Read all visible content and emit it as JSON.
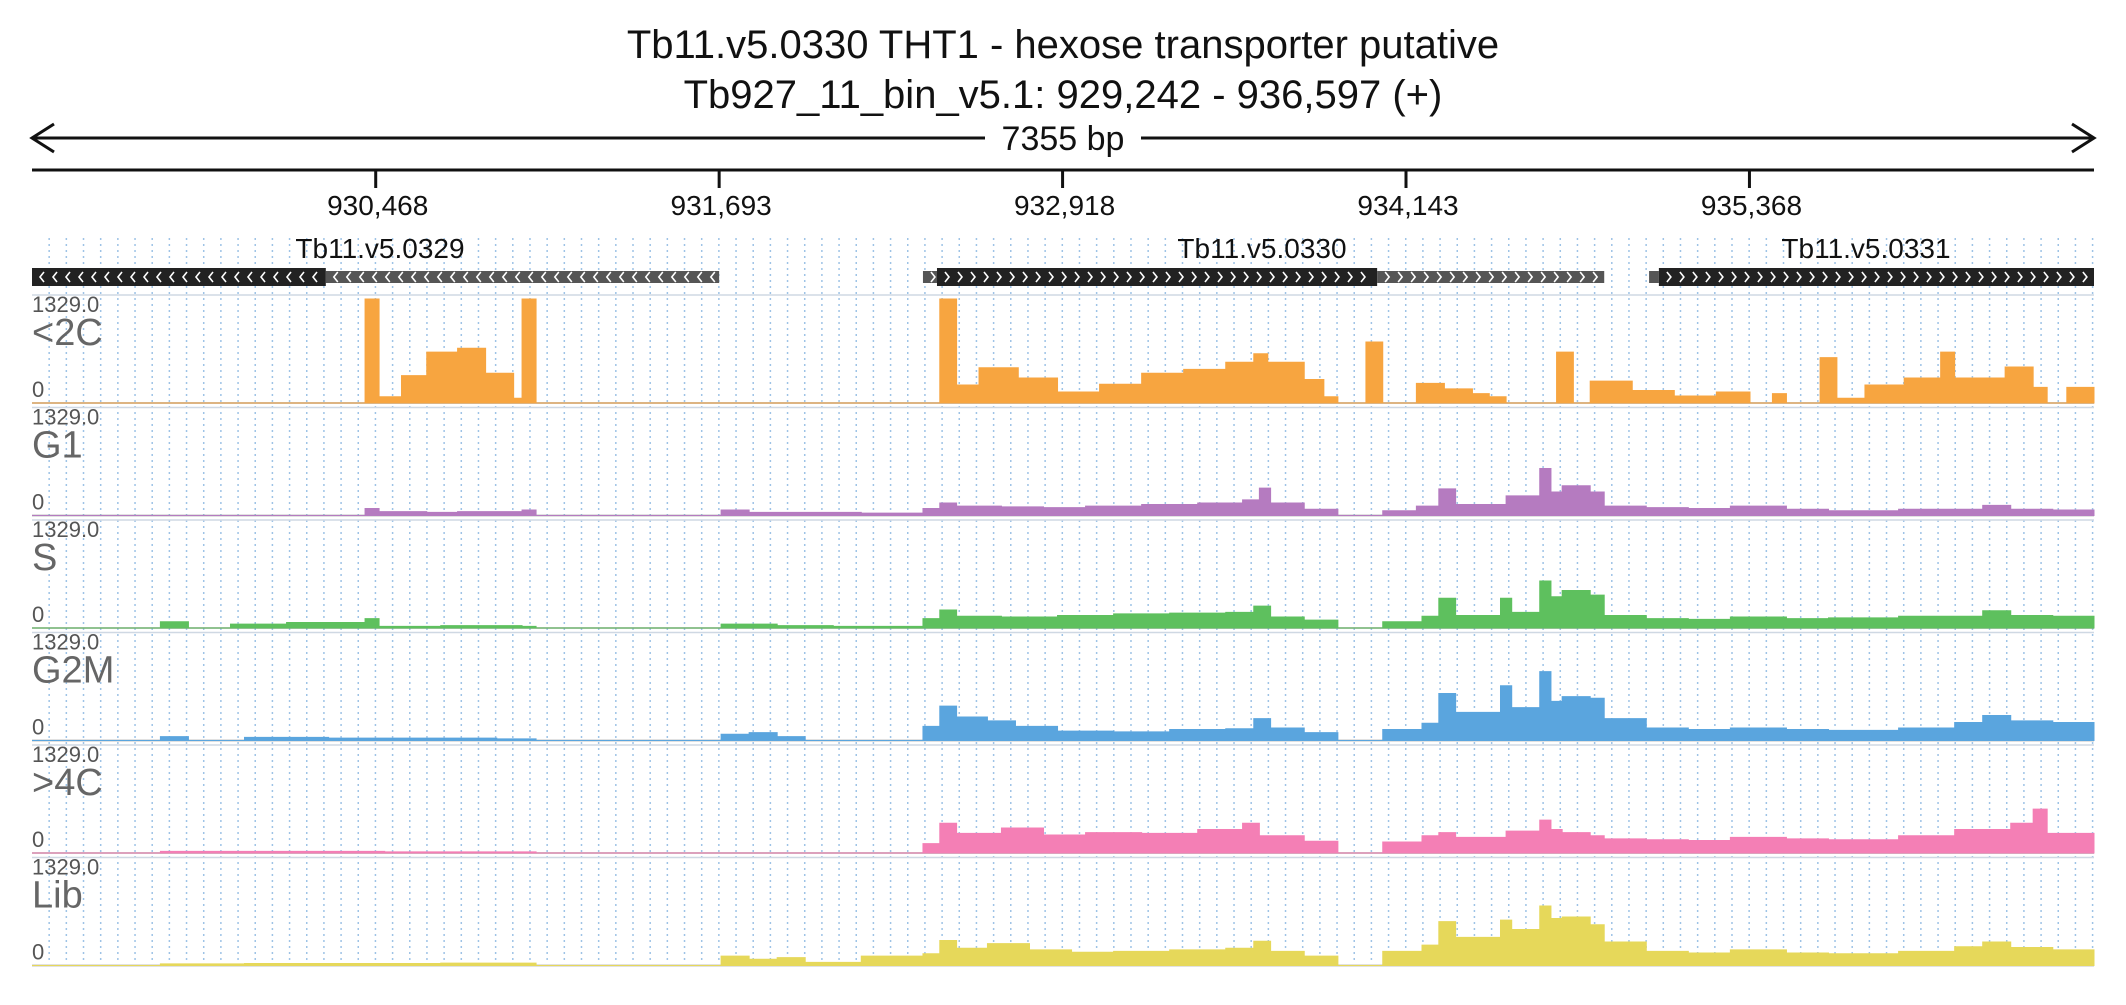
{
  "header": {
    "title": "Tb11.v5.0330  THT1 - hexose transporter  putative",
    "subtitle": "Tb927_11_bin_v5.1: 929,242 - 936,597 (+)",
    "span_label": "7355 bp"
  },
  "chart_data": {
    "type": "area",
    "x_range": [
      929242,
      936597
    ],
    "ticks": [
      930468,
      931693,
      932918,
      934143,
      935368
    ],
    "tick_labels": [
      "930,468",
      "931,693",
      "932,918",
      "934,143",
      "935,368"
    ],
    "genes": [
      {
        "name": "Tb11.v5.0329",
        "strand": "-",
        "cds": [
          929242,
          930290
        ],
        "utr": [
          930290,
          931693
        ]
      },
      {
        "name": "Tb11.v5.0330",
        "strand": "+",
        "utr": [
          932420,
          932470
        ],
        "cds": [
          932470,
          934040
        ],
        "utr3": [
          934040,
          934850
        ]
      },
      {
        "name": "Tb11.v5.0331",
        "strand": "+",
        "utr": [
          935010,
          935045
        ],
        "cds": [
          935045,
          936597
        ]
      }
    ],
    "tracks": [
      {
        "name": "<2C",
        "color": "#f7a540",
        "ymax_label": "1329.0",
        "ymin_label": "0"
      },
      {
        "name": "G1",
        "color": "#b57bc0",
        "ymax_label": "1329.0",
        "ymin_label": "0"
      },
      {
        "name": "S",
        "color": "#5ec05e",
        "ymax_label": "1329.0",
        "ymin_label": "0"
      },
      {
        "name": "G2M",
        "color": "#5aa5de",
        "ymax_label": "1329.0",
        "ymin_label": "0"
      },
      {
        "name": ">4C",
        "color": "#f47fb5",
        "ymax_label": "1329.0",
        "ymin_label": "0"
      },
      {
        "name": "Lib",
        "color": "#e6d85a",
        "ymax_label": "1329.0",
        "ymin_label": "0"
      }
    ],
    "coverage": {
      "<2C": [
        [
          930430,
          1329
        ],
        [
          930480,
          80
        ],
        [
          930560,
          350
        ],
        [
          930650,
          650
        ],
        [
          930760,
          700
        ],
        [
          930860,
          380
        ],
        [
          930960,
          60
        ],
        [
          930990,
          1329
        ],
        [
          931040,
          0
        ],
        [
          932480,
          1329
        ],
        [
          932540,
          230
        ],
        [
          932620,
          450
        ],
        [
          932760,
          320
        ],
        [
          932900,
          140
        ],
        [
          933050,
          240
        ],
        [
          933200,
          380
        ],
        [
          933350,
          430
        ],
        [
          933500,
          520
        ],
        [
          933600,
          630
        ],
        [
          933650,
          520
        ],
        [
          933780,
          300
        ],
        [
          933850,
          80
        ],
        [
          933900,
          0
        ],
        [
          934000,
          780
        ],
        [
          934060,
          0
        ],
        [
          934180,
          250
        ],
        [
          934280,
          180
        ],
        [
          934380,
          120
        ],
        [
          934440,
          80
        ],
        [
          934500,
          0
        ],
        [
          934680,
          650
        ],
        [
          934740,
          0
        ],
        [
          934800,
          280
        ],
        [
          934950,
          160
        ],
        [
          935100,
          90
        ],
        [
          935250,
          140
        ],
        [
          935370,
          0
        ],
        [
          935450,
          120
        ],
        [
          935500,
          0
        ],
        [
          935620,
          580
        ],
        [
          935680,
          60
        ],
        [
          935780,
          230
        ],
        [
          935920,
          320
        ],
        [
          936050,
          650
        ],
        [
          936100,
          320
        ],
        [
          936280,
          460
        ],
        [
          936380,
          200
        ],
        [
          936430,
          0
        ],
        [
          936500,
          200
        ]
      ],
      "G1": [
        [
          930430,
          90
        ],
        [
          930480,
          50
        ],
        [
          930650,
          40
        ],
        [
          930760,
          50
        ],
        [
          930990,
          70
        ],
        [
          931040,
          0
        ],
        [
          931700,
          70
        ],
        [
          931800,
          40
        ],
        [
          932000,
          40
        ],
        [
          932200,
          30
        ],
        [
          932420,
          90
        ],
        [
          932480,
          160
        ],
        [
          932540,
          120
        ],
        [
          932700,
          110
        ],
        [
          932850,
          100
        ],
        [
          933000,
          120
        ],
        [
          933200,
          140
        ],
        [
          933400,
          160
        ],
        [
          933560,
          200
        ],
        [
          933620,
          350
        ],
        [
          933660,
          160
        ],
        [
          933780,
          80
        ],
        [
          933900,
          0
        ],
        [
          934060,
          60
        ],
        [
          934180,
          120
        ],
        [
          934260,
          340
        ],
        [
          934320,
          140
        ],
        [
          934500,
          250
        ],
        [
          934620,
          600
        ],
        [
          934660,
          300
        ],
        [
          934700,
          380
        ],
        [
          934800,
          300
        ],
        [
          934850,
          120
        ],
        [
          935000,
          100
        ],
        [
          935150,
          90
        ],
        [
          935300,
          120
        ],
        [
          935500,
          80
        ],
        [
          935650,
          60
        ],
        [
          935900,
          80
        ],
        [
          936200,
          130
        ],
        [
          936300,
          80
        ],
        [
          936450,
          70
        ],
        [
          936597,
          0
        ]
      ],
      "S": [
        [
          929700,
          80
        ],
        [
          929800,
          0
        ],
        [
          929950,
          50
        ],
        [
          930150,
          70
        ],
        [
          930430,
          120
        ],
        [
          930480,
          20
        ],
        [
          930700,
          30
        ],
        [
          930990,
          20
        ],
        [
          931040,
          0
        ],
        [
          931700,
          50
        ],
        [
          931900,
          30
        ],
        [
          932100,
          20
        ],
        [
          932420,
          120
        ],
        [
          932480,
          230
        ],
        [
          932540,
          150
        ],
        [
          932700,
          140
        ],
        [
          932900,
          160
        ],
        [
          933100,
          180
        ],
        [
          933300,
          190
        ],
        [
          933500,
          200
        ],
        [
          933600,
          280
        ],
        [
          933660,
          140
        ],
        [
          933780,
          100
        ],
        [
          933900,
          0
        ],
        [
          934060,
          80
        ],
        [
          934200,
          150
        ],
        [
          934260,
          380
        ],
        [
          934320,
          160
        ],
        [
          934480,
          380
        ],
        [
          934520,
          200
        ],
        [
          934620,
          600
        ],
        [
          934660,
          400
        ],
        [
          934700,
          480
        ],
        [
          934800,
          420
        ],
        [
          934850,
          160
        ],
        [
          935000,
          120
        ],
        [
          935150,
          110
        ],
        [
          935300,
          140
        ],
        [
          935500,
          120
        ],
        [
          935650,
          130
        ],
        [
          935900,
          150
        ],
        [
          936200,
          220
        ],
        [
          936300,
          160
        ],
        [
          936450,
          150
        ],
        [
          936597,
          0
        ]
      ],
      "G2M": [
        [
          929700,
          50
        ],
        [
          929800,
          0
        ],
        [
          930000,
          40
        ],
        [
          930300,
          30
        ],
        [
          930700,
          30
        ],
        [
          930900,
          20
        ],
        [
          931040,
          0
        ],
        [
          931700,
          80
        ],
        [
          931800,
          100
        ],
        [
          931900,
          50
        ],
        [
          932000,
          0
        ],
        [
          932420,
          180
        ],
        [
          932480,
          440
        ],
        [
          932540,
          300
        ],
        [
          932650,
          250
        ],
        [
          932750,
          180
        ],
        [
          932900,
          120
        ],
        [
          933100,
          110
        ],
        [
          933300,
          140
        ],
        [
          933500,
          150
        ],
        [
          933600,
          280
        ],
        [
          933660,
          160
        ],
        [
          933780,
          100
        ],
        [
          933900,
          0
        ],
        [
          934060,
          140
        ],
        [
          934200,
          220
        ],
        [
          934260,
          600
        ],
        [
          934320,
          360
        ],
        [
          934480,
          700
        ],
        [
          934520,
          420
        ],
        [
          934620,
          880
        ],
        [
          934660,
          500
        ],
        [
          934700,
          560
        ],
        [
          934800,
          540
        ],
        [
          934850,
          280
        ],
        [
          935000,
          160
        ],
        [
          935150,
          140
        ],
        [
          935300,
          160
        ],
        [
          935500,
          140
        ],
        [
          935650,
          130
        ],
        [
          935900,
          160
        ],
        [
          936100,
          230
        ],
        [
          936200,
          320
        ],
        [
          936300,
          250
        ],
        [
          936450,
          230
        ],
        [
          936597,
          0
        ]
      ],
      ">4C": [
        [
          929700,
          20
        ],
        [
          930000,
          20
        ],
        [
          930500,
          15
        ],
        [
          931040,
          0
        ],
        [
          932420,
          120
        ],
        [
          932480,
          380
        ],
        [
          932540,
          250
        ],
        [
          932700,
          320
        ],
        [
          932850,
          230
        ],
        [
          933000,
          260
        ],
        [
          933200,
          250
        ],
        [
          933400,
          300
        ],
        [
          933560,
          380
        ],
        [
          933620,
          220
        ],
        [
          933780,
          150
        ],
        [
          933900,
          0
        ],
        [
          934060,
          140
        ],
        [
          934200,
          220
        ],
        [
          934260,
          260
        ],
        [
          934320,
          200
        ],
        [
          934500,
          280
        ],
        [
          934620,
          420
        ],
        [
          934660,
          300
        ],
        [
          934700,
          260
        ],
        [
          934800,
          220
        ],
        [
          934850,
          180
        ],
        [
          935000,
          170
        ],
        [
          935150,
          160
        ],
        [
          935300,
          200
        ],
        [
          935500,
          180
        ],
        [
          935650,
          170
        ],
        [
          935900,
          220
        ],
        [
          936100,
          300
        ],
        [
          936300,
          380
        ],
        [
          936380,
          560
        ],
        [
          936430,
          250
        ],
        [
          936597,
          0
        ]
      ],
      "Lib": [
        [
          929700,
          20
        ],
        [
          930000,
          25
        ],
        [
          930400,
          25
        ],
        [
          930700,
          30
        ],
        [
          931040,
          0
        ],
        [
          931700,
          120
        ],
        [
          931800,
          80
        ],
        [
          931900,
          100
        ],
        [
          932000,
          40
        ],
        [
          932200,
          120
        ],
        [
          932420,
          150
        ],
        [
          932480,
          320
        ],
        [
          932540,
          220
        ],
        [
          932650,
          280
        ],
        [
          932800,
          200
        ],
        [
          932950,
          170
        ],
        [
          933100,
          180
        ],
        [
          933300,
          200
        ],
        [
          933500,
          220
        ],
        [
          933600,
          310
        ],
        [
          933660,
          180
        ],
        [
          933780,
          120
        ],
        [
          933900,
          0
        ],
        [
          934060,
          180
        ],
        [
          934200,
          260
        ],
        [
          934260,
          560
        ],
        [
          934320,
          360
        ],
        [
          934480,
          580
        ],
        [
          934520,
          460
        ],
        [
          934620,
          760
        ],
        [
          934660,
          600
        ],
        [
          934700,
          620
        ],
        [
          934800,
          520
        ],
        [
          934850,
          300
        ],
        [
          935000,
          180
        ],
        [
          935150,
          160
        ],
        [
          935300,
          200
        ],
        [
          935500,
          160
        ],
        [
          935650,
          150
        ],
        [
          935900,
          180
        ],
        [
          936100,
          240
        ],
        [
          936200,
          300
        ],
        [
          936300,
          230
        ],
        [
          936450,
          200
        ],
        [
          936597,
          0
        ]
      ]
    }
  }
}
